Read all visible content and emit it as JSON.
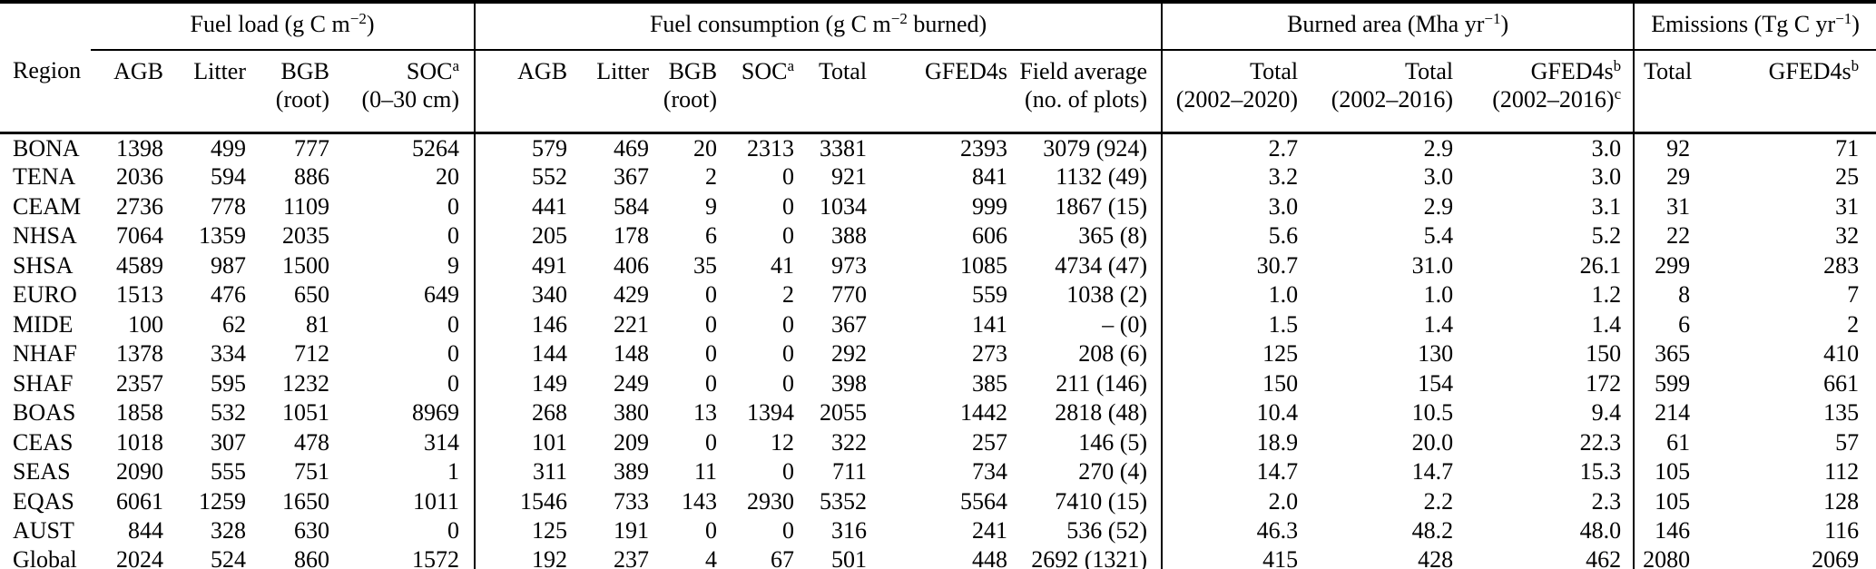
{
  "colors": {
    "text": "#000000",
    "background": "#ffffff",
    "rule": "#000000"
  },
  "table": {
    "groups": [
      {
        "label_html": "Fuel load (g C m<sup>−2</sup>)"
      },
      {
        "label_html": "Fuel consumption (g C m<sup>−2</sup> burned)"
      },
      {
        "label_html": "Burned area (Mha yr<sup>−1</sup>)"
      },
      {
        "label_html": "Emissions (Tg C yr<sup>−1</sup>)"
      }
    ],
    "columns": [
      {
        "key": "region",
        "header_html": "Region"
      },
      {
        "key": "fl_agb",
        "header_html": "AGB"
      },
      {
        "key": "fl_litter",
        "header_html": "Litter"
      },
      {
        "key": "fl_bgb",
        "header_html": "BGB<br>(root)"
      },
      {
        "key": "fl_soc",
        "header_html": "SOC<sup>a</sup><br>(0–30 cm)"
      },
      {
        "key": "fc_agb",
        "header_html": "AGB"
      },
      {
        "key": "fc_litter",
        "header_html": "Litter"
      },
      {
        "key": "fc_bgb",
        "header_html": "BGB<br>(root)"
      },
      {
        "key": "fc_soc",
        "header_html": "SOC<sup>a</sup>"
      },
      {
        "key": "fc_total",
        "header_html": "Total"
      },
      {
        "key": "fc_gfed4s",
        "header_html": "GFED4s"
      },
      {
        "key": "fc_field_average",
        "header_html": "Field average<br>(no. of plots)"
      },
      {
        "key": "ba_total_2002_2020",
        "header_html": "Total<br>(2002–2020)"
      },
      {
        "key": "ba_total_2002_2016",
        "header_html": "Total<br>(2002–2016)"
      },
      {
        "key": "ba_gfed4s",
        "header_html": "GFED4s<sup>b</sup><br>(2002–2016)<sup>c</sup>"
      },
      {
        "key": "em_total",
        "header_html": "Total"
      },
      {
        "key": "em_gfed4s",
        "header_html": "GFED4s<sup>b</sup>"
      }
    ],
    "rows": [
      [
        "BONA",
        "1398",
        "499",
        "777",
        "5264",
        "579",
        "469",
        "20",
        "2313",
        "3381",
        "2393",
        "3079 (924)",
        "2.7",
        "2.9",
        "3.0",
        "92",
        "71"
      ],
      [
        "TENA",
        "2036",
        "594",
        "886",
        "20",
        "552",
        "367",
        "2",
        "0",
        "921",
        "841",
        "1132 (49)",
        "3.2",
        "3.0",
        "3.0",
        "29",
        "25"
      ],
      [
        "CEAM",
        "2736",
        "778",
        "1109",
        "0",
        "441",
        "584",
        "9",
        "0",
        "1034",
        "999",
        "1867 (15)",
        "3.0",
        "2.9",
        "3.1",
        "31",
        "31"
      ],
      [
        "NHSA",
        "7064",
        "1359",
        "2035",
        "0",
        "205",
        "178",
        "6",
        "0",
        "388",
        "606",
        "365 (8)",
        "5.6",
        "5.4",
        "5.2",
        "22",
        "32"
      ],
      [
        "SHSA",
        "4589",
        "987",
        "1500",
        "9",
        "491",
        "406",
        "35",
        "41",
        "973",
        "1085",
        "4734 (47)",
        "30.7",
        "31.0",
        "26.1",
        "299",
        "283"
      ],
      [
        "EURO",
        "1513",
        "476",
        "650",
        "649",
        "340",
        "429",
        "0",
        "2",
        "770",
        "559",
        "1038 (2)",
        "1.0",
        "1.0",
        "1.2",
        "8",
        "7"
      ],
      [
        "MIDE",
        "100",
        "62",
        "81",
        "0",
        "146",
        "221",
        "0",
        "0",
        "367",
        "141",
        "– (0)",
        "1.5",
        "1.4",
        "1.4",
        "6",
        "2"
      ],
      [
        "NHAF",
        "1378",
        "334",
        "712",
        "0",
        "144",
        "148",
        "0",
        "0",
        "292",
        "273",
        "208 (6)",
        "125",
        "130",
        "150",
        "365",
        "410"
      ],
      [
        "SHAF",
        "2357",
        "595",
        "1232",
        "0",
        "149",
        "249",
        "0",
        "0",
        "398",
        "385",
        "211 (146)",
        "150",
        "154",
        "172",
        "599",
        "661"
      ],
      [
        "BOAS",
        "1858",
        "532",
        "1051",
        "8969",
        "268",
        "380",
        "13",
        "1394",
        "2055",
        "1442",
        "2818 (48)",
        "10.4",
        "10.5",
        "9.4",
        "214",
        "135"
      ],
      [
        "CEAS",
        "1018",
        "307",
        "478",
        "314",
        "101",
        "209",
        "0",
        "12",
        "322",
        "257",
        "146 (5)",
        "18.9",
        "20.0",
        "22.3",
        "61",
        "57"
      ],
      [
        "SEAS",
        "2090",
        "555",
        "751",
        "1",
        "311",
        "389",
        "11",
        "0",
        "711",
        "734",
        "270 (4)",
        "14.7",
        "14.7",
        "15.3",
        "105",
        "112"
      ],
      [
        "EQAS",
        "6061",
        "1259",
        "1650",
        "1011",
        "1546",
        "733",
        "143",
        "2930",
        "5352",
        "5564",
        "7410 (15)",
        "2.0",
        "2.2",
        "2.3",
        "105",
        "128"
      ],
      [
        "AUST",
        "844",
        "328",
        "630",
        "0",
        "125",
        "191",
        "0",
        "0",
        "316",
        "241",
        "536 (52)",
        "46.3",
        "48.2",
        "48.0",
        "146",
        "116"
      ],
      [
        "Global",
        "2024",
        "524",
        "860",
        "1572",
        "192",
        "237",
        "4",
        "67",
        "501",
        "448",
        "2692 (1321)",
        "415",
        "428",
        "462",
        "2080",
        "2069"
      ]
    ]
  }
}
